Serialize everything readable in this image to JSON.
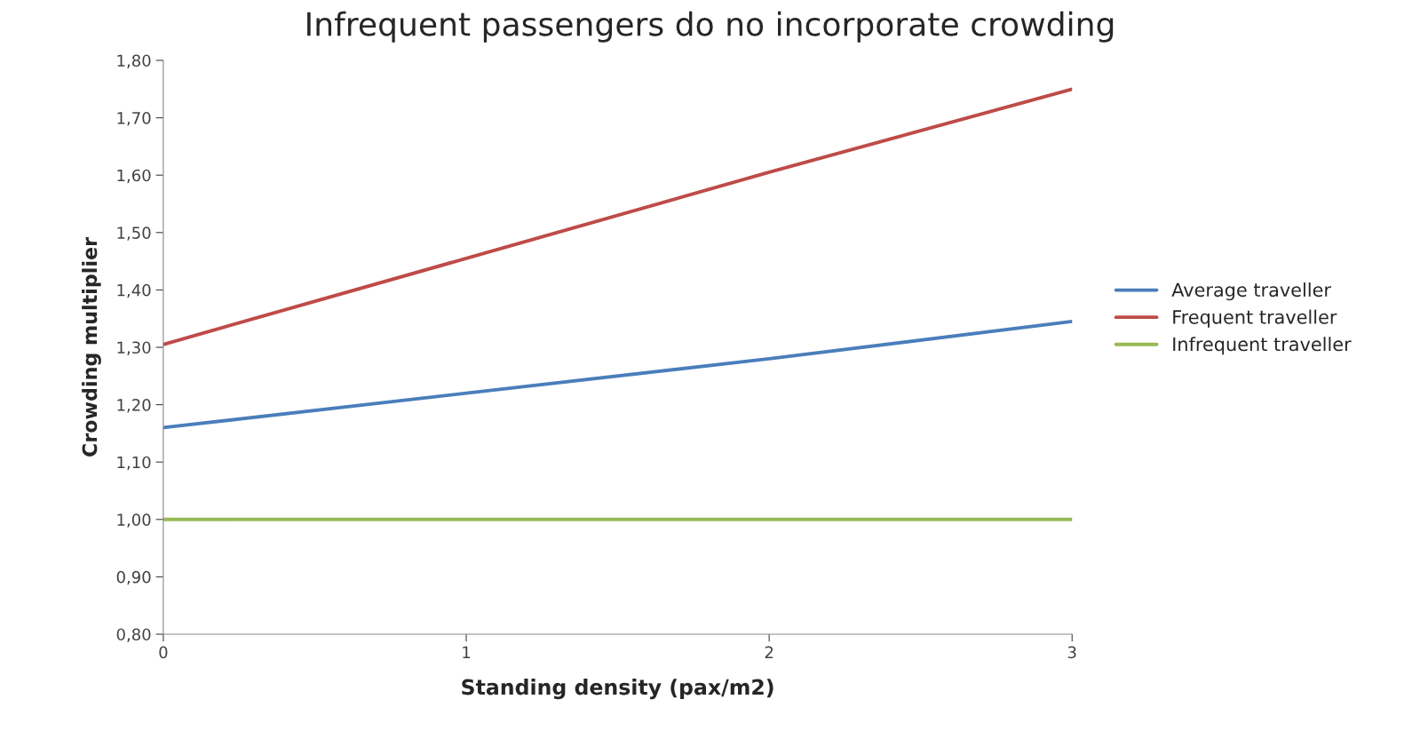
{
  "chart_data": {
    "type": "line",
    "title": "Infrequent passengers do no incorporate crowding",
    "xlabel": "Standing density (pax/m2)",
    "ylabel": "Crowding multiplier",
    "x": [
      0,
      1,
      2,
      3
    ],
    "series": [
      {
        "name": "Average traveller",
        "color": "#4a7ebb",
        "values": [
          1.16,
          1.22,
          1.28,
          1.345
        ]
      },
      {
        "name": "Frequent traveller",
        "color": "#be4b48",
        "values": [
          1.305,
          1.455,
          1.605,
          1.75
        ]
      },
      {
        "name": "Infrequent traveller",
        "color": "#98b954",
        "values": [
          1.0,
          1.0,
          1.0,
          1.0
        ]
      }
    ],
    "xlim": [
      0,
      3
    ],
    "xticks": [
      0,
      1,
      2,
      3
    ],
    "ylim": [
      0.8,
      1.8
    ],
    "yticks": [
      {
        "value": 0.8,
        "label": "0,80"
      },
      {
        "value": 0.9,
        "label": "0,90"
      },
      {
        "value": 1.0,
        "label": "1,00"
      },
      {
        "value": 1.1,
        "label": "1,10"
      },
      {
        "value": 1.2,
        "label": "1,20"
      },
      {
        "value": 1.3,
        "label": "1,30"
      },
      {
        "value": 1.4,
        "label": "1,40"
      },
      {
        "value": 1.5,
        "label": "1,50"
      },
      {
        "value": 1.6,
        "label": "1,60"
      },
      {
        "value": 1.7,
        "label": "1,70"
      },
      {
        "value": 1.8,
        "label": "1,80"
      }
    ],
    "grid": false,
    "legend": "right",
    "marker": "none",
    "line_style": "solid"
  }
}
